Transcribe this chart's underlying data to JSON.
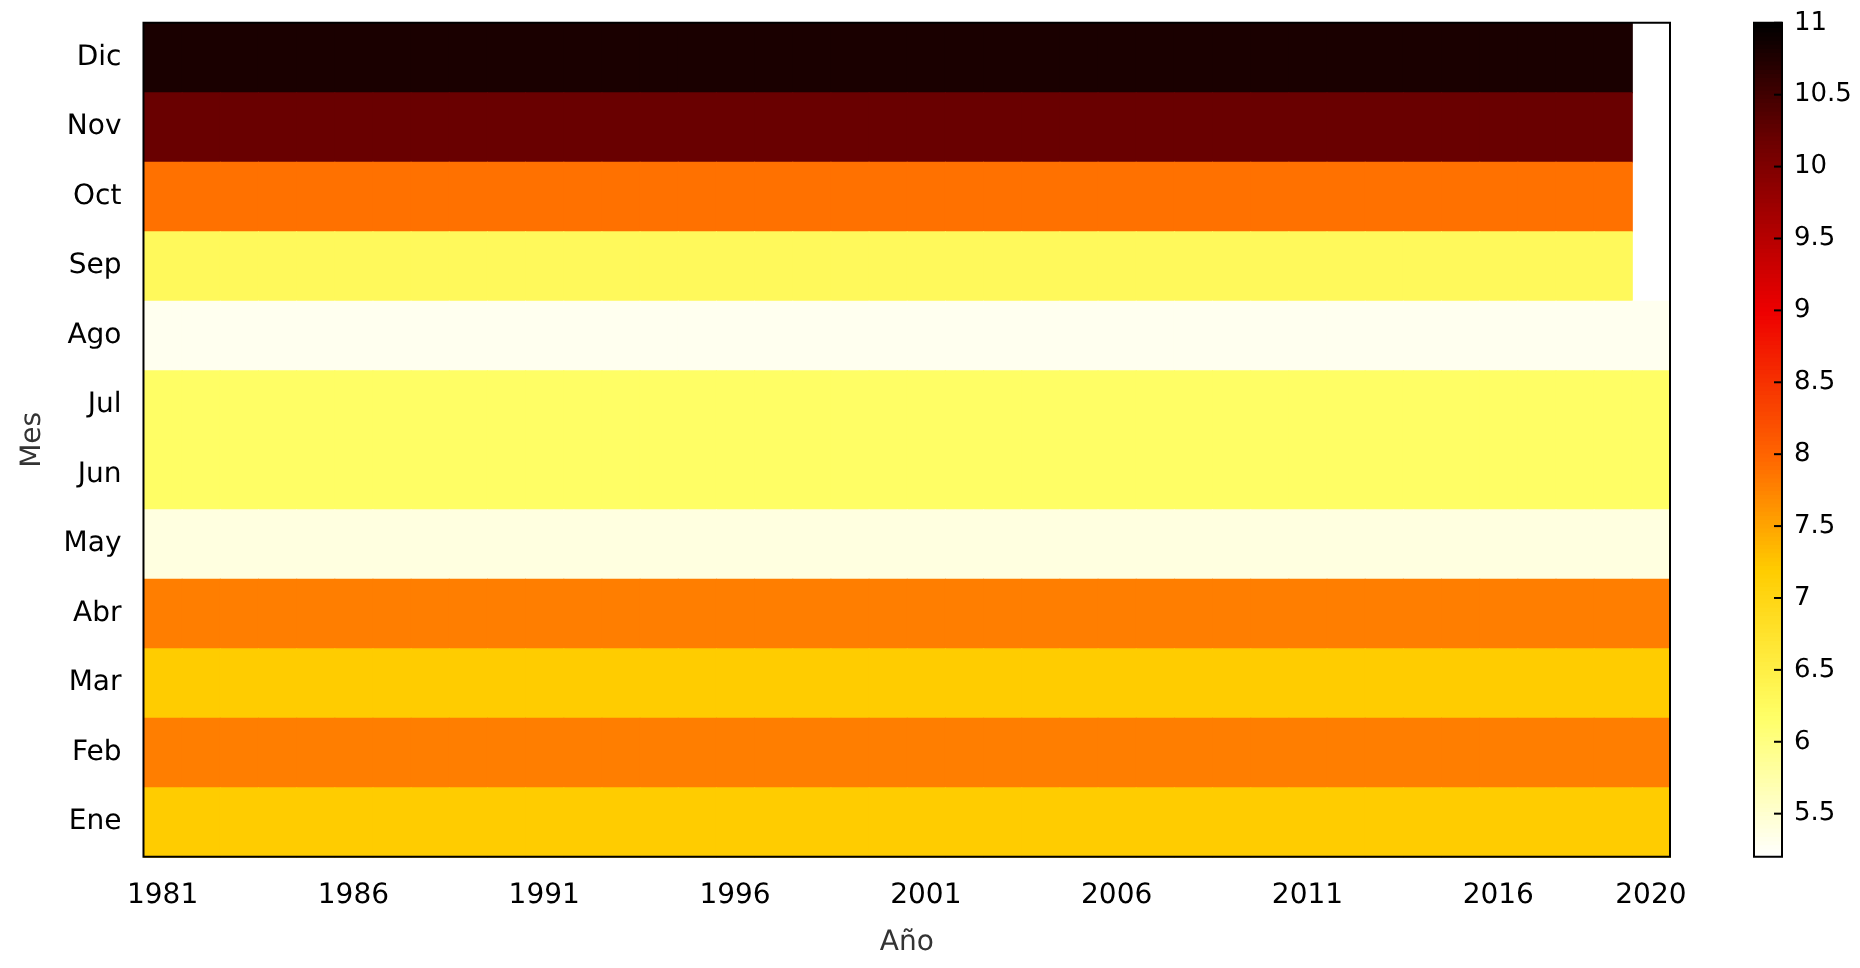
{
  "chart_data": {
    "type": "heatmap",
    "xlabel": "Año",
    "ylabel": "Mes",
    "categories": [
      "1981",
      null,
      null,
      null,
      null,
      "1986",
      null,
      null,
      null,
      null,
      "1991",
      null,
      null,
      null,
      null,
      "1996",
      null,
      null,
      null,
      null,
      "2001",
      null,
      null,
      null,
      null,
      "2006",
      null,
      null,
      null,
      null,
      "2011",
      null,
      null,
      null,
      null,
      "2016",
      null,
      null,
      null,
      "2020"
    ],
    "y_categories": [
      "Dic",
      "Nov",
      "Oct",
      "Sep",
      "Ago",
      "Jul",
      "Jun",
      "May",
      "Abr",
      "Mar",
      "Feb",
      "Ene"
    ],
    "cells": [
      [
        10.8,
        10.8,
        10.8,
        10.8,
        10.8,
        10.8,
        10.8,
        10.8,
        10.8,
        10.8,
        10.8,
        10.8,
        10.8,
        10.8,
        10.8,
        10.8,
        10.8,
        10.8,
        10.8,
        10.8,
        10.8,
        10.8,
        10.8,
        10.8,
        10.8,
        10.8,
        10.8,
        10.8,
        10.8,
        10.8,
        10.8,
        10.8,
        10.8,
        10.8,
        10.8,
        10.8,
        10.8,
        10.8,
        10.8,
        null
      ],
      [
        10.2,
        10.2,
        10.2,
        10.2,
        10.2,
        10.2,
        10.2,
        10.2,
        10.2,
        10.2,
        10.2,
        10.2,
        10.2,
        10.2,
        10.2,
        10.2,
        10.2,
        10.2,
        10.2,
        10.2,
        10.2,
        10.2,
        10.2,
        10.2,
        10.2,
        10.2,
        10.2,
        10.2,
        10.2,
        10.2,
        10.2,
        10.2,
        10.2,
        10.2,
        10.2,
        10.2,
        10.2,
        10.2,
        10.2,
        null
      ],
      [
        7.9,
        7.9,
        7.9,
        7.9,
        7.9,
        7.9,
        7.9,
        7.9,
        7.9,
        7.9,
        7.9,
        7.9,
        7.9,
        7.9,
        7.9,
        7.9,
        7.9,
        7.9,
        7.9,
        7.9,
        7.9,
        7.9,
        7.9,
        7.9,
        7.9,
        7.9,
        7.9,
        7.9,
        7.9,
        7.9,
        7.9,
        7.9,
        7.9,
        7.9,
        7.9,
        7.9,
        7.9,
        7.9,
        7.9,
        null
      ],
      [
        6.3,
        6.3,
        6.3,
        6.3,
        6.3,
        6.3,
        6.3,
        6.3,
        6.3,
        6.3,
        6.3,
        6.3,
        6.3,
        6.3,
        6.3,
        6.3,
        6.3,
        6.3,
        6.3,
        6.3,
        6.3,
        6.3,
        6.3,
        6.3,
        6.3,
        6.3,
        6.3,
        6.3,
        6.3,
        6.3,
        6.3,
        6.3,
        6.3,
        6.3,
        6.3,
        6.3,
        6.3,
        6.3,
        6.3,
        null
      ],
      [
        5.3,
        5.3,
        5.3,
        5.3,
        5.3,
        5.3,
        5.3,
        5.3,
        5.3,
        5.3,
        5.3,
        5.3,
        5.3,
        5.3,
        5.3,
        5.3,
        5.3,
        5.3,
        5.3,
        5.3,
        5.3,
        5.3,
        5.3,
        5.3,
        5.3,
        5.3,
        5.3,
        5.3,
        5.3,
        5.3,
        5.3,
        5.3,
        5.3,
        5.3,
        5.3,
        5.3,
        5.3,
        5.3,
        5.3,
        5.3
      ],
      [
        6.2,
        6.2,
        6.2,
        6.2,
        6.2,
        6.2,
        6.2,
        6.2,
        6.2,
        6.2,
        6.2,
        6.2,
        6.2,
        6.2,
        6.2,
        6.2,
        6.2,
        6.2,
        6.2,
        6.2,
        6.2,
        6.2,
        6.2,
        6.2,
        6.2,
        6.2,
        6.2,
        6.2,
        6.2,
        6.2,
        6.2,
        6.2,
        6.2,
        6.2,
        6.2,
        6.2,
        6.2,
        6.2,
        6.2,
        6.2
      ],
      [
        6.2,
        6.2,
        6.2,
        6.2,
        6.2,
        6.2,
        6.2,
        6.2,
        6.2,
        6.2,
        6.2,
        6.2,
        6.2,
        6.2,
        6.2,
        6.2,
        6.2,
        6.2,
        6.2,
        6.2,
        6.2,
        6.2,
        6.2,
        6.2,
        6.2,
        6.2,
        6.2,
        6.2,
        6.2,
        6.2,
        6.2,
        6.2,
        6.2,
        6.2,
        6.2,
        6.2,
        6.2,
        6.2,
        6.2,
        6.2
      ],
      [
        5.4,
        5.4,
        5.4,
        5.4,
        5.4,
        5.4,
        5.4,
        5.4,
        5.4,
        5.4,
        5.4,
        5.4,
        5.4,
        5.4,
        5.4,
        5.4,
        5.4,
        5.4,
        5.4,
        5.4,
        5.4,
        5.4,
        5.4,
        5.4,
        5.4,
        5.4,
        5.4,
        5.4,
        5.4,
        5.4,
        5.4,
        5.4,
        5.4,
        5.4,
        5.4,
        5.4,
        5.4,
        5.4,
        5.4,
        5.4
      ],
      [
        7.8,
        7.8,
        7.8,
        7.8,
        7.8,
        7.8,
        7.8,
        7.8,
        7.8,
        7.8,
        7.8,
        7.8,
        7.8,
        7.8,
        7.8,
        7.8,
        7.8,
        7.8,
        7.8,
        7.8,
        7.8,
        7.8,
        7.8,
        7.8,
        7.8,
        7.8,
        7.8,
        7.8,
        7.8,
        7.8,
        7.8,
        7.8,
        7.8,
        7.8,
        7.8,
        7.8,
        7.8,
        7.8,
        7.8,
        7.8
      ],
      [
        7.2,
        7.2,
        7.2,
        7.2,
        7.2,
        7.2,
        7.2,
        7.2,
        7.2,
        7.2,
        7.2,
        7.2,
        7.2,
        7.2,
        7.2,
        7.2,
        7.2,
        7.2,
        7.2,
        7.2,
        7.2,
        7.2,
        7.2,
        7.2,
        7.2,
        7.2,
        7.2,
        7.2,
        7.2,
        7.2,
        7.2,
        7.2,
        7.2,
        7.2,
        7.2,
        7.2,
        7.2,
        7.2,
        7.2,
        7.2
      ],
      [
        7.8,
        7.8,
        7.8,
        7.8,
        7.8,
        7.8,
        7.8,
        7.8,
        7.8,
        7.8,
        7.8,
        7.8,
        7.8,
        7.8,
        7.8,
        7.8,
        7.8,
        7.8,
        7.8,
        7.8,
        7.8,
        7.8,
        7.8,
        7.8,
        7.8,
        7.8,
        7.8,
        7.8,
        7.8,
        7.8,
        7.8,
        7.8,
        7.8,
        7.8,
        7.8,
        7.8,
        7.8,
        7.8,
        7.8,
        7.8
      ],
      [
        7.2,
        7.2,
        7.2,
        7.2,
        7.2,
        7.2,
        7.2,
        7.2,
        7.2,
        7.2,
        7.2,
        7.2,
        7.2,
        7.2,
        7.2,
        7.2,
        7.2,
        7.2,
        7.2,
        7.2,
        7.2,
        7.2,
        7.2,
        7.2,
        7.2,
        7.2,
        7.2,
        7.2,
        7.2,
        7.2,
        7.2,
        7.2,
        7.2,
        7.2,
        7.2,
        7.2,
        7.2,
        7.2,
        7.2,
        7.2
      ]
    ],
    "clim": [
      5.2,
      11
    ],
    "cticks": [
      5.5,
      6,
      6.5,
      7,
      7.5,
      8,
      8.5,
      9,
      9.5,
      10,
      10.5,
      11
    ]
  }
}
